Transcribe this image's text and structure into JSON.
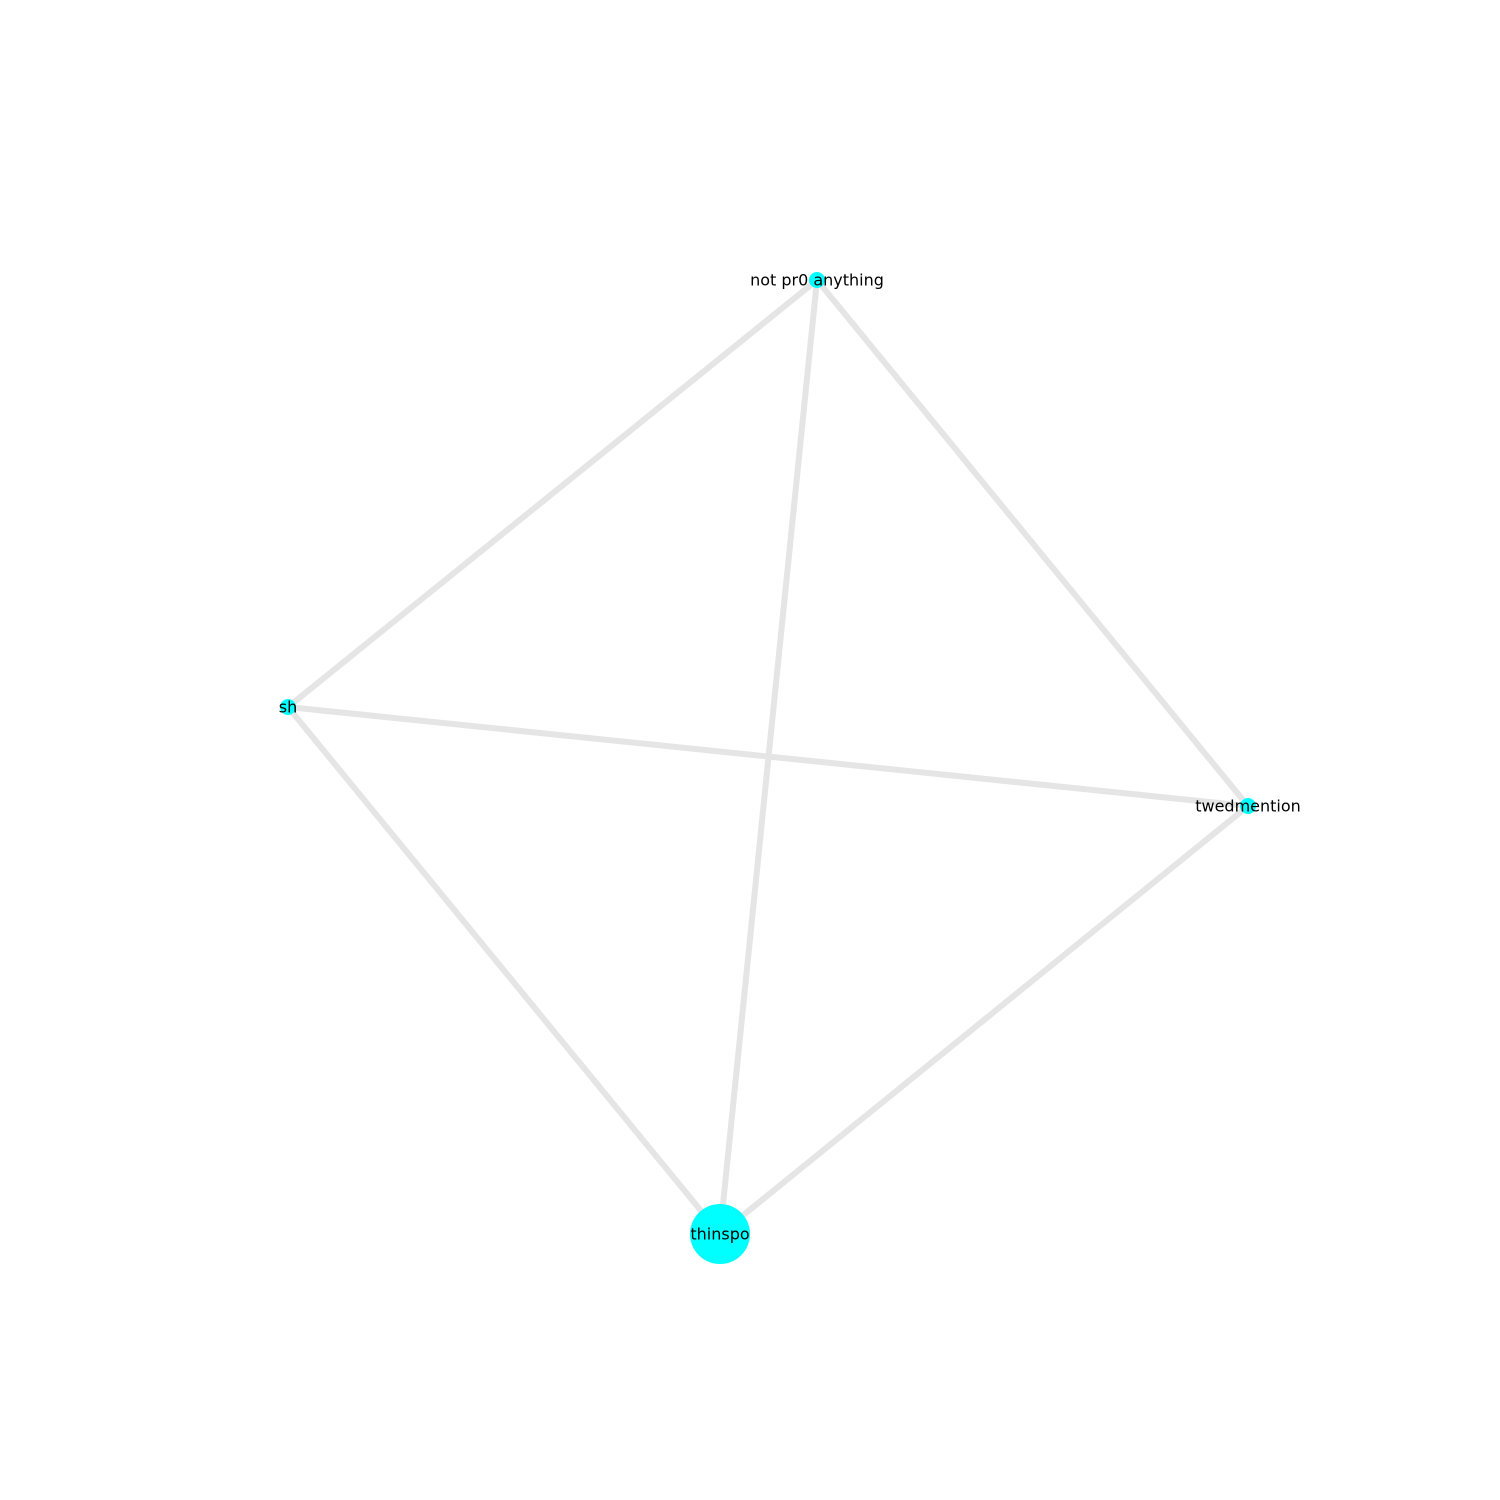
{
  "colors": {
    "background": "#ffffff",
    "node_fill": "#00ffff",
    "edge_stroke": "#e5e5e5",
    "label_text": "#000000"
  },
  "graph": {
    "nodes": [
      {
        "id": "not-pr0-anything",
        "label": "not pr0 anything",
        "weight": "small"
      },
      {
        "id": "sh",
        "label": "sh",
        "weight": "small"
      },
      {
        "id": "twedmention",
        "label": "twedmention",
        "weight": "small"
      },
      {
        "id": "thinspo",
        "label": "thinspo",
        "weight": "large"
      }
    ],
    "edges": [
      {
        "source": "not-pr0-anything",
        "target": "sh"
      },
      {
        "source": "not-pr0-anything",
        "target": "twedmention"
      },
      {
        "source": "not-pr0-anything",
        "target": "thinspo"
      },
      {
        "source": "sh",
        "target": "twedmention"
      },
      {
        "source": "sh",
        "target": "thinspo"
      },
      {
        "source": "twedmention",
        "target": "thinspo"
      }
    ]
  }
}
